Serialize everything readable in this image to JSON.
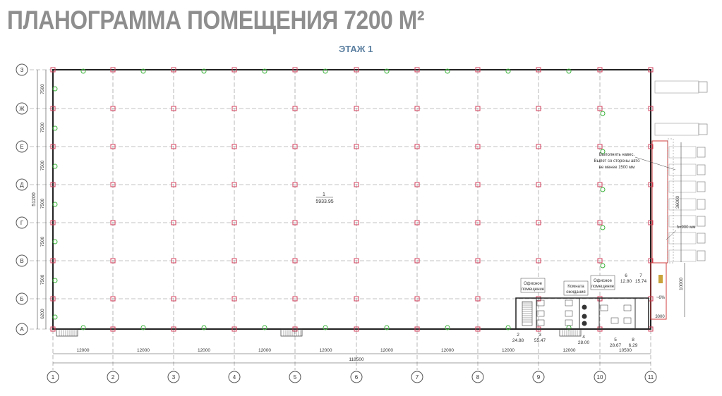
{
  "title": "ПЛАНОГРАММА ПОМЕЩЕНИЯ 7200 М²",
  "floor": "ЭТАЖ 1",
  "axes_letters": [
    "З",
    "Ж",
    "Е",
    "Д",
    "Г",
    "В",
    "Б",
    "А"
  ],
  "row_dims": [
    "7500",
    "7500",
    "7500",
    "7500",
    "7500",
    "7500",
    "6200"
  ],
  "total_height": "51200",
  "axes_numbers": [
    "1",
    "2",
    "3",
    "4",
    "5",
    "6",
    "7",
    "8",
    "9",
    "10",
    "11"
  ],
  "col_dims": [
    "12000",
    "12000",
    "12000",
    "12000",
    "12000",
    "12000",
    "12000",
    "12000",
    "12000",
    "10500"
  ],
  "total_width": "118500",
  "main_room": {
    "number": "1",
    "area": "5933.95"
  },
  "rooms": [
    {
      "number": "2",
      "area": "24.88"
    },
    {
      "number": "3",
      "area": "55.47"
    },
    {
      "number": "4",
      "area": "28.00"
    },
    {
      "number": "5",
      "area": "28.67"
    },
    {
      "number": "8",
      "area": "6.29"
    },
    {
      "number": "6",
      "area": "12.80"
    },
    {
      "number": "7",
      "area": "15.74"
    }
  ],
  "labels": {
    "office1": [
      "Офисное",
      "помещение"
    ],
    "waiting": [
      "Комната",
      "ожидания"
    ],
    "office2": [
      "Офисное",
      "помещение"
    ]
  },
  "canopy_note": [
    "Выполнить навес.",
    "Вылет со стороны авто",
    "не менее 1500 мм"
  ],
  "canopy_length": "36000",
  "canopy_height": "h=900 мм",
  "ramp_length": "10000",
  "ramp_slope": "~6%",
  "ramp_width": "3000",
  "colors": {
    "wall": "#222222",
    "grid": "#888888",
    "column": "#d23c5a",
    "light": "#3bb33b",
    "canopy": "#d23c3c"
  }
}
